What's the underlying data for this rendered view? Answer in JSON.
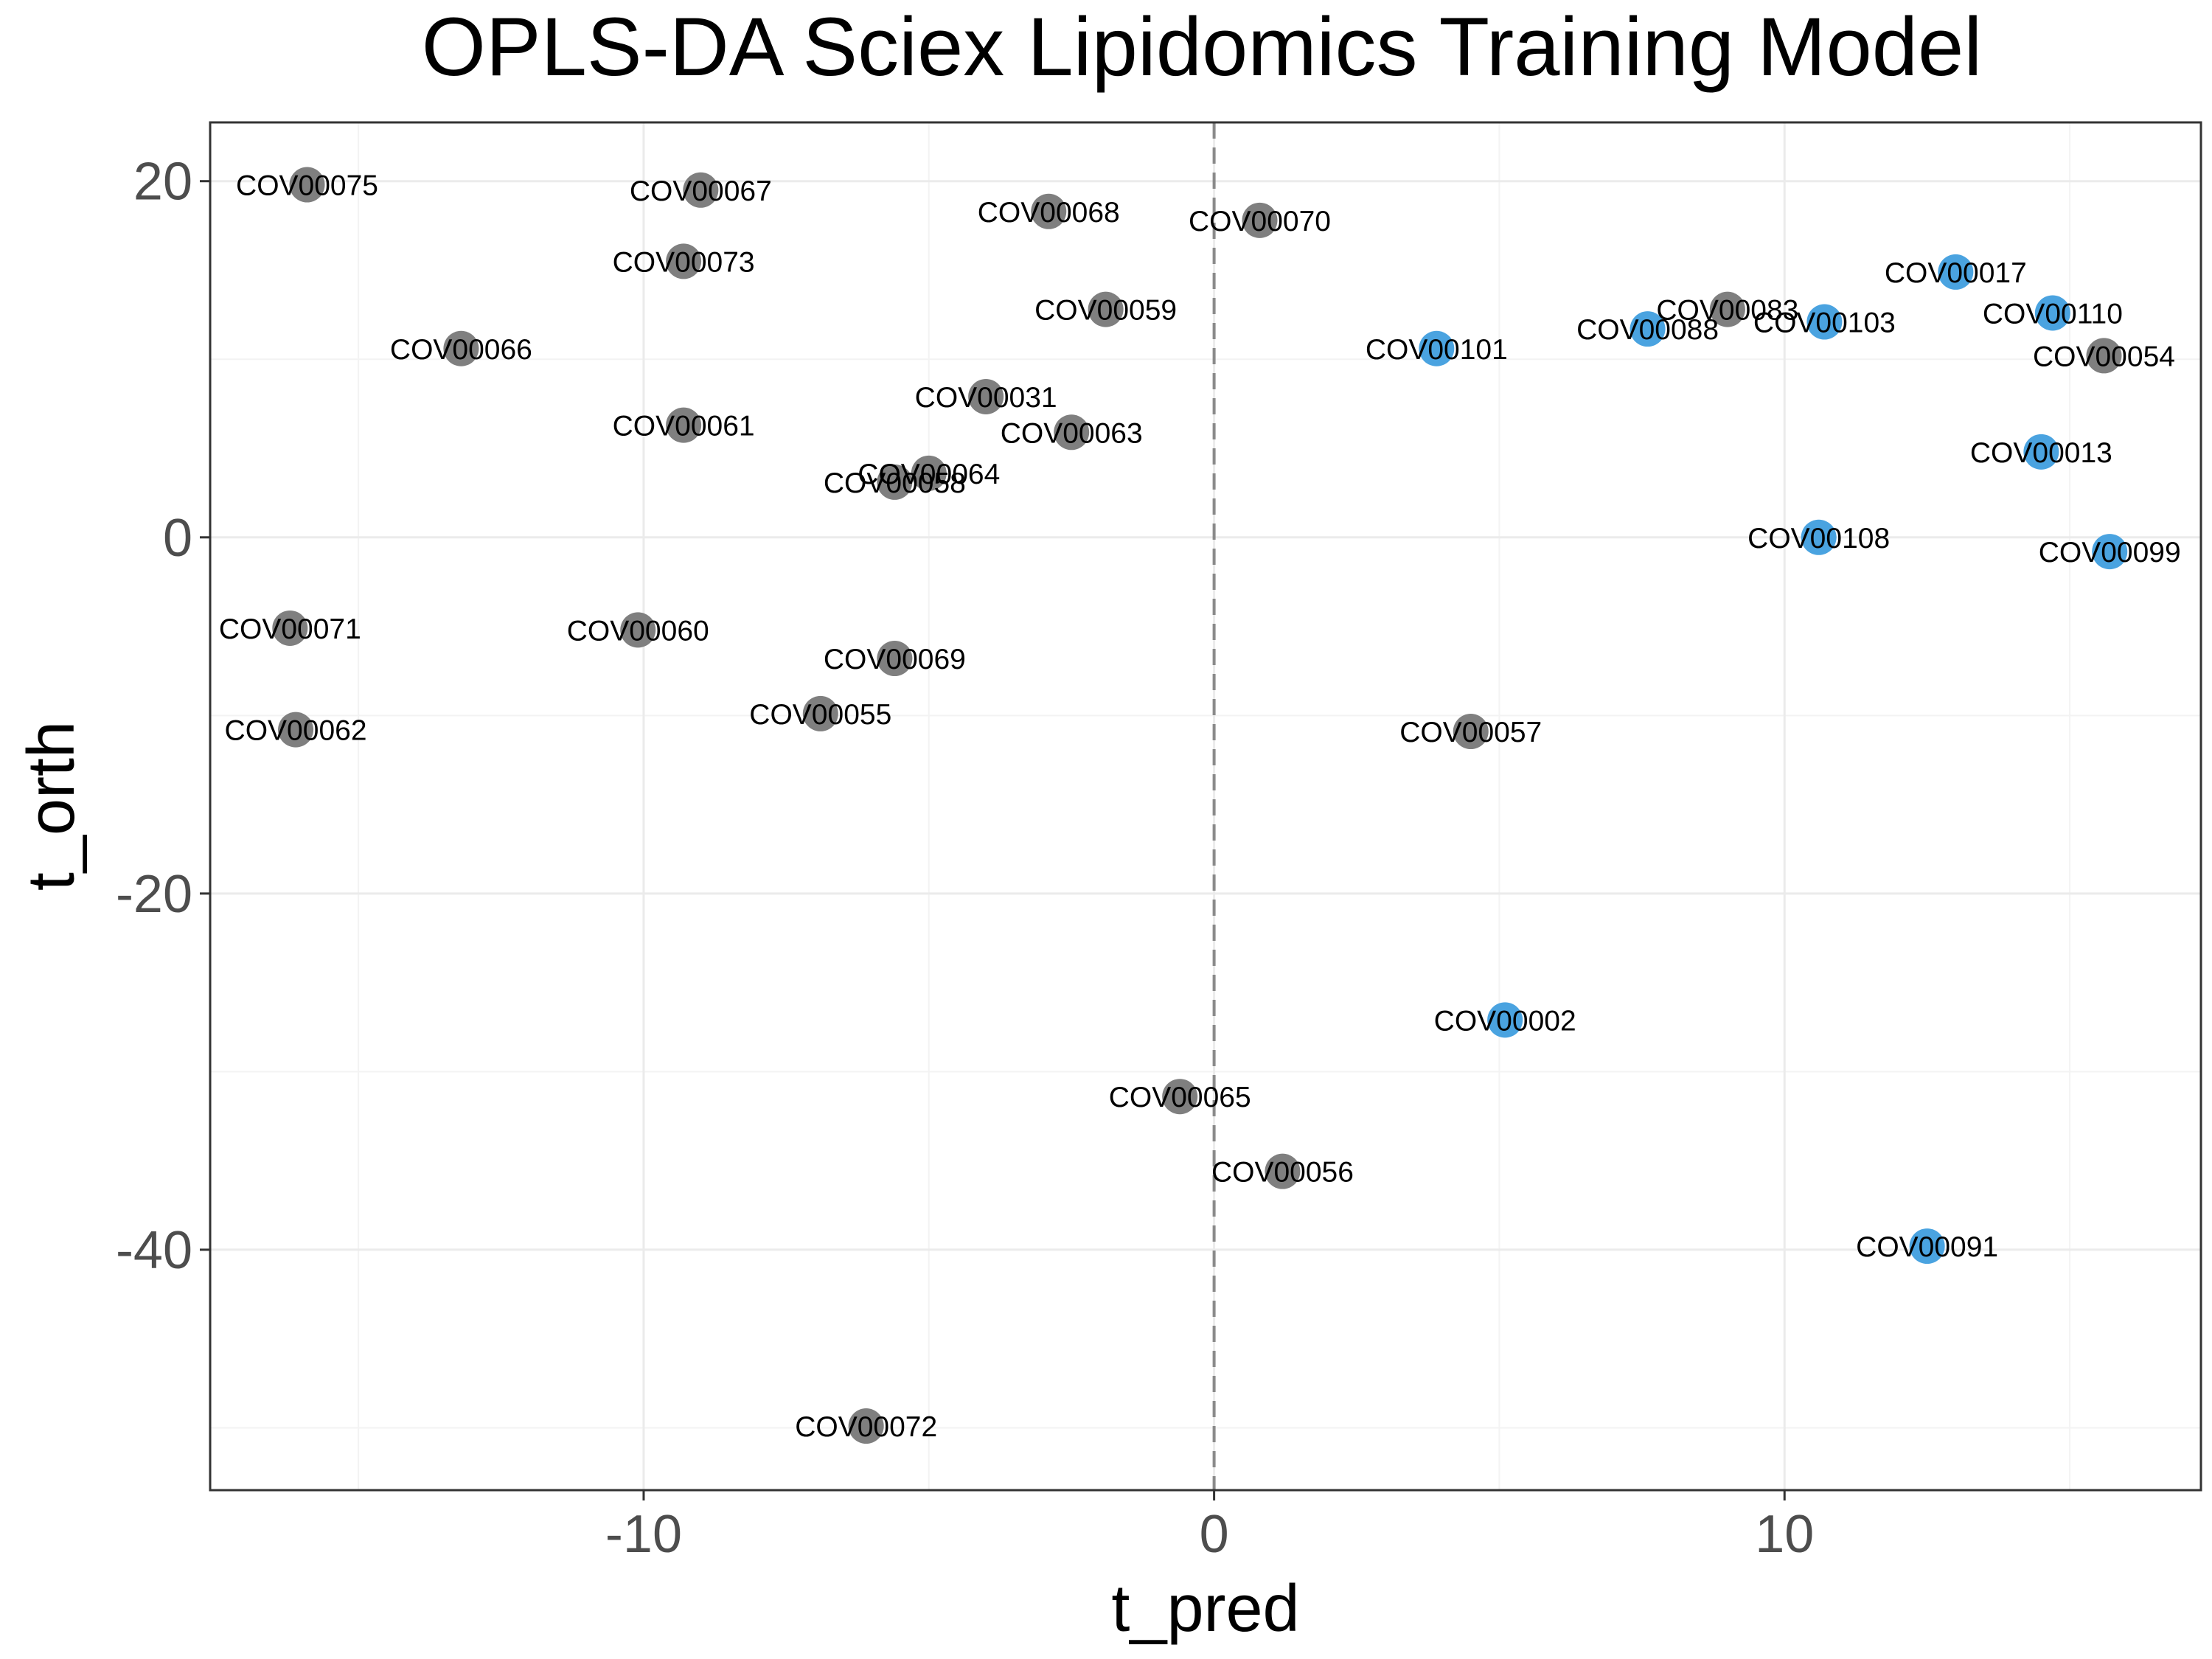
{
  "chart_data": {
    "type": "scatter",
    "title": "OPLS-DA Sciex Lipidomics Training Model",
    "xlabel": "t_pred",
    "ylabel": "t_orth",
    "xlim": [
      -17.6,
      17.3
    ],
    "ylim": [
      -53.5,
      23.3
    ],
    "x_ticks": [
      -10,
      0,
      10
    ],
    "x_tick_labels": [
      "-10",
      "0",
      "10"
    ],
    "y_ticks": [
      -40,
      -20,
      0,
      20
    ],
    "y_tick_labels": [
      "-40",
      "-20",
      "0",
      "20"
    ],
    "grid": true,
    "reference_line": {
      "axis": "x",
      "value": 0,
      "style": "dashed"
    },
    "colors": {
      "group_gray": "#7f7f7f",
      "group_blue": "#4aa3e0"
    },
    "legend": "none",
    "points": [
      {
        "label": "COV00075",
        "x": -15.9,
        "y": 19.8,
        "group": "gray"
      },
      {
        "label": "COV00067",
        "x": -9.0,
        "y": 19.5,
        "group": "gray"
      },
      {
        "label": "COV00068",
        "x": -2.9,
        "y": 18.3,
        "group": "gray"
      },
      {
        "label": "COV00070",
        "x": 0.8,
        "y": 17.8,
        "group": "gray"
      },
      {
        "label": "COV00073",
        "x": -9.3,
        "y": 15.5,
        "group": "gray"
      },
      {
        "label": "COV00059",
        "x": -1.9,
        "y": 12.8,
        "group": "gray"
      },
      {
        "label": "COV00066",
        "x": -13.2,
        "y": 10.6,
        "group": "gray"
      },
      {
        "label": "COV00031",
        "x": -4.0,
        "y": 7.9,
        "group": "gray"
      },
      {
        "label": "COV00061",
        "x": -9.3,
        "y": 6.3,
        "group": "gray"
      },
      {
        "label": "COV00063",
        "x": -2.5,
        "y": 5.9,
        "group": "gray"
      },
      {
        "label": "COV00064",
        "x": -5.0,
        "y": 3.6,
        "group": "gray"
      },
      {
        "label": "COV00058",
        "x": -5.6,
        "y": 3.1,
        "group": "gray"
      },
      {
        "label": "COV00071",
        "x": -16.2,
        "y": -5.1,
        "group": "gray"
      },
      {
        "label": "COV00060",
        "x": -10.1,
        "y": -5.2,
        "group": "gray"
      },
      {
        "label": "COV00069",
        "x": -5.6,
        "y": -6.8,
        "group": "gray"
      },
      {
        "label": "COV00055",
        "x": -6.9,
        "y": -9.9,
        "group": "gray"
      },
      {
        "label": "COV00062",
        "x": -16.1,
        "y": -10.8,
        "group": "gray"
      },
      {
        "label": "COV00057",
        "x": 4.5,
        "y": -10.9,
        "group": "gray"
      },
      {
        "label": "COV00065",
        "x": -0.6,
        "y": -31.4,
        "group": "gray"
      },
      {
        "label": "COV00056",
        "x": 1.2,
        "y": -35.6,
        "group": "gray"
      },
      {
        "label": "COV00072",
        "x": -6.1,
        "y": -49.9,
        "group": "gray"
      },
      {
        "label": "COV00083",
        "x": 9.0,
        "y": 12.8,
        "group": "gray"
      },
      {
        "label": "COV00054",
        "x": 15.6,
        "y": 10.2,
        "group": "gray"
      },
      {
        "label": "COV00017",
        "x": 13.0,
        "y": 14.9,
        "group": "blue"
      },
      {
        "label": "COV00110",
        "x": 14.7,
        "y": 12.6,
        "group": "blue"
      },
      {
        "label": "COV00103",
        "x": 10.7,
        "y": 12.1,
        "group": "blue"
      },
      {
        "label": "COV00088",
        "x": 7.6,
        "y": 11.7,
        "group": "blue"
      },
      {
        "label": "COV00101",
        "x": 3.9,
        "y": 10.6,
        "group": "blue"
      },
      {
        "label": "COV00013",
        "x": 14.5,
        "y": 4.8,
        "group": "blue"
      },
      {
        "label": "COV00108",
        "x": 10.6,
        "y": 0.0,
        "group": "blue"
      },
      {
        "label": "COV00099",
        "x": 15.7,
        "y": -0.8,
        "group": "blue"
      },
      {
        "label": "COV00002",
        "x": 5.1,
        "y": -27.1,
        "group": "blue"
      },
      {
        "label": "COV00091",
        "x": 12.5,
        "y": -39.8,
        "group": "blue"
      }
    ]
  }
}
